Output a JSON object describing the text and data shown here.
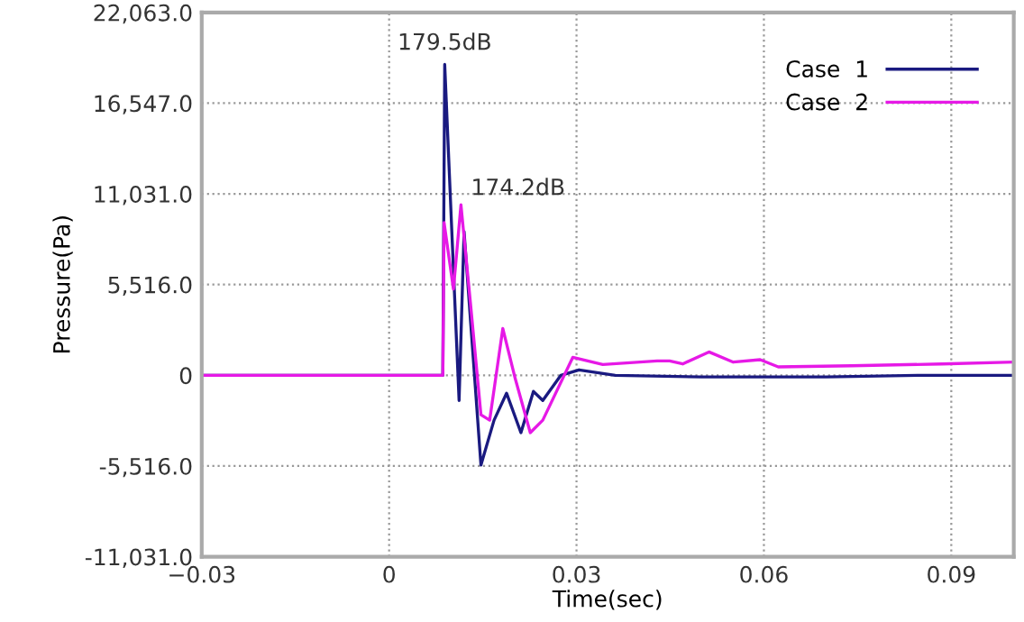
{
  "chart_data": {
    "type": "line",
    "xlabel": "Time(sec)",
    "ylabel": "Pressure(Pa)",
    "xlim": [
      -0.03,
      0.1
    ],
    "xticks": [
      {
        "value": -0.03,
        "label": "−0.03"
      },
      0,
      0.03,
      0.06,
      0.09
    ],
    "ylim": [
      -11031,
      22063
    ],
    "yticks": [
      {
        "value": -11031,
        "label": "-11,031.0"
      },
      {
        "value": -5516,
        "label": "-5,516.0"
      },
      0,
      {
        "value": 5516,
        "label": "5,516.0"
      },
      {
        "value": 11031,
        "label": "11,031.0"
      },
      {
        "value": 16547,
        "label": "16,547.0"
      },
      {
        "value": 22063,
        "label": "22,063.0"
      }
    ],
    "grid": true,
    "legend": "top right",
    "line_style": "solid",
    "marker": "none",
    "annotations": [
      {
        "text": "179.5dB",
        "x": 0.0089,
        "y": 18900
      },
      {
        "text": "174.2dB",
        "x": 0.0115,
        "y": 10370
      }
    ],
    "series": [
      {
        "name": "Case  1",
        "color": "#1a1a80",
        "x": [
          -0.03,
          0.0086,
          0.0089,
          0.0101,
          0.0112,
          0.012,
          0.0135,
          0.0147,
          0.0168,
          0.0188,
          0.0211,
          0.0231,
          0.0246,
          0.0275,
          0.0304,
          0.0362,
          0.05,
          0.07,
          0.085,
          0.1
        ],
        "values": [
          0,
          0,
          18900,
          8190,
          -1530,
          8740,
          870,
          -5460,
          -2730,
          -1090,
          -3490,
          -980,
          -1530,
          0,
          330,
          0,
          -100,
          -100,
          0,
          0
        ]
      },
      {
        "name": "Case  2",
        "color": "#e619e6",
        "x": [
          -0.03,
          0.0086,
          0.0088,
          0.0103,
          0.0115,
          0.013,
          0.0147,
          0.0161,
          0.0182,
          0.0202,
          0.0226,
          0.0246,
          0.0294,
          0.0342,
          0.0429,
          0.0449,
          0.047,
          0.0512,
          0.0551,
          0.0594,
          0.0623,
          0.074,
          0.0885,
          0.1
        ],
        "values": [
          0,
          0,
          9280,
          5240,
          10370,
          4480,
          -2400,
          -2730,
          2840,
          -220,
          -3490,
          -2730,
          1090,
          650,
          870,
          870,
          690,
          1420,
          800,
          950,
          510,
          580,
          690,
          800
        ]
      }
    ]
  }
}
